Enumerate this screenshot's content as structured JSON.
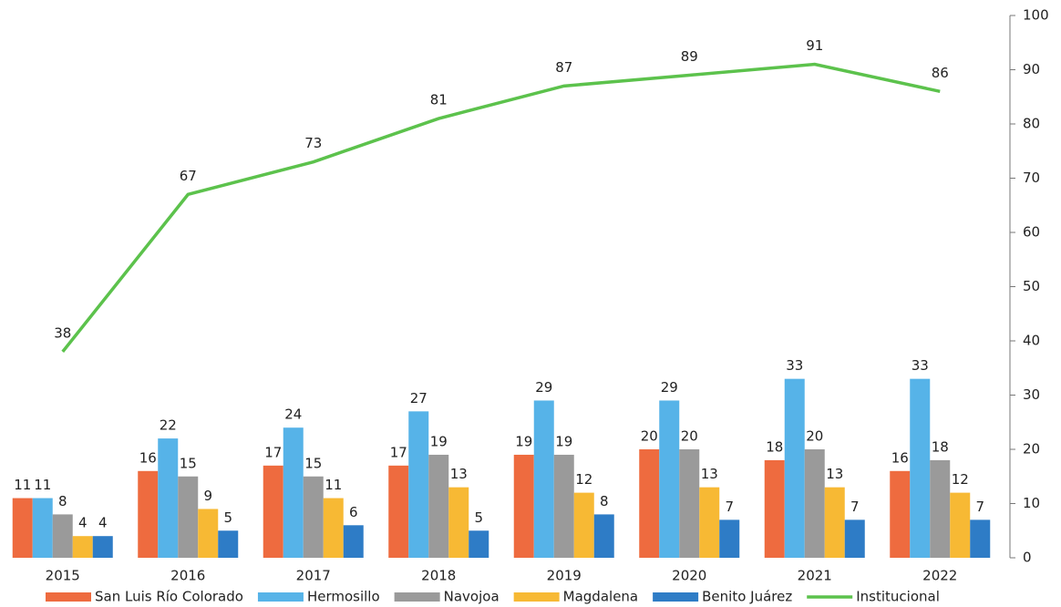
{
  "chart_data": {
    "type": "bar",
    "categories": [
      "2015",
      "2016",
      "2017",
      "2018",
      "2019",
      "2020",
      "2021",
      "2022"
    ],
    "series": [
      {
        "name": "San Luis Río Colorado",
        "color": "#ee6b3f",
        "values": [
          11,
          16,
          17,
          17,
          19,
          20,
          18,
          16
        ]
      },
      {
        "name": "Hermosillo",
        "color": "#56b3e8",
        "values": [
          11,
          22,
          24,
          27,
          29,
          29,
          33,
          33
        ]
      },
      {
        "name": "Navojoa",
        "color": "#9a9a9a",
        "values": [
          8,
          15,
          15,
          19,
          19,
          20,
          20,
          18
        ]
      },
      {
        "name": "Magdalena",
        "color": "#f7b934",
        "values": [
          4,
          9,
          11,
          13,
          12,
          13,
          13,
          12
        ]
      },
      {
        "name": "Benito Juárez",
        "color": "#2e7cc6",
        "values": [
          4,
          5,
          6,
          5,
          8,
          7,
          7,
          7
        ]
      },
      {
        "name": "Institucional",
        "color": "#5cc24c",
        "type": "line",
        "values": [
          38,
          67,
          73,
          81,
          87,
          89,
          91,
          86
        ]
      }
    ],
    "ylim": [
      0,
      100
    ],
    "yticks": [
      0,
      10,
      20,
      30,
      40,
      50,
      60,
      70,
      80,
      90,
      100
    ],
    "yaxis_side": "right"
  }
}
